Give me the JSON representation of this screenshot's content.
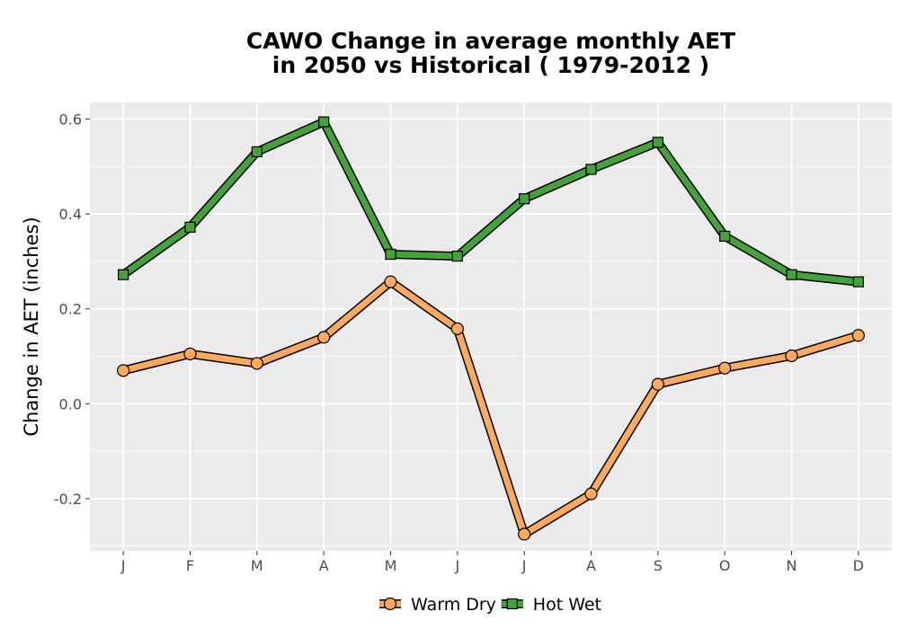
{
  "title_line1": "CAWO  Change in average monthly AET",
  "title_line2": "in 2050 vs Historical ( 1979-2012 )",
  "chart_data": {
    "type": "line",
    "categories": [
      "J",
      "F",
      "M",
      "A",
      "M",
      "J",
      "J",
      "A",
      "S",
      "O",
      "N",
      "D"
    ],
    "series": [
      {
        "name": "Warm Dry",
        "marker": "circle",
        "color": "#FDAA5E",
        "values": [
          0.07,
          0.105,
          0.085,
          0.14,
          0.257,
          0.158,
          -0.275,
          -0.19,
          0.041,
          0.075,
          0.101,
          0.144
        ]
      },
      {
        "name": "Hot Wet",
        "marker": "square",
        "color": "#43A33A",
        "values": [
          0.272,
          0.372,
          0.531,
          0.594,
          0.315,
          0.311,
          0.432,
          0.494,
          0.551,
          0.353,
          0.272,
          0.257
        ]
      }
    ],
    "ylabel": "Change in AET (inches)",
    "xlabel": "",
    "ylim": [
      -0.31,
      0.635
    ],
    "yticks": [
      -0.2,
      0.0,
      0.2,
      0.4,
      0.6
    ],
    "ytick_labels": [
      "-0.2",
      "0.0",
      "0.2",
      "0.4",
      "0.6"
    ],
    "grid": true,
    "legend_position": "bottom",
    "panel_color": "#EBEBEB",
    "grid_color": "#FFFFFF"
  }
}
